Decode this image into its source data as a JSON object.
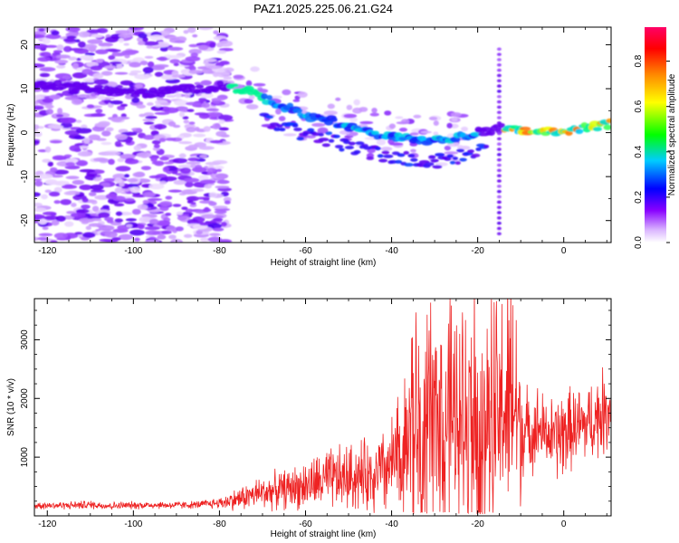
{
  "title": "PAZ1.2025.225.06.21.G24",
  "chart_data": [
    {
      "type": "heatmap",
      "xlabel": "Height of straight line (km)",
      "ylabel": "Frequency (Hz)",
      "xlim": [
        -123,
        11
      ],
      "ylim": [
        -25,
        24
      ],
      "xticks": [
        -120,
        -100,
        -80,
        -60,
        -40,
        -20,
        0
      ],
      "yticks": [
        -20,
        -10,
        0,
        10,
        20
      ],
      "colorbar": {
        "label": "Normalized spectral amplitude",
        "range": [
          0,
          0.95
        ],
        "ticks": [
          0.0,
          0.2,
          0.4,
          0.6,
          0.8
        ],
        "colormap": [
          "#ffffff",
          "#8800ff",
          "#0000ff",
          "#00ffff",
          "#00ff00",
          "#ffff00",
          "#ff8800",
          "#ff0000",
          "#ff0066"
        ]
      },
      "ridge": {
        "x": [
          -123,
          -110,
          -100,
          -95,
          -90,
          -85,
          -80,
          -75,
          -70,
          -65,
          -60,
          -55,
          -50,
          -45,
          -40,
          -35,
          -30,
          -25,
          -20,
          -17,
          -15,
          -10,
          -5,
          0,
          5,
          11
        ],
        "frequency": [
          11,
          10,
          9,
          9,
          10,
          10,
          10.5,
          10,
          8,
          6,
          4,
          3,
          1.5,
          0,
          -1,
          -1.5,
          -2,
          -1,
          0,
          0.5,
          1,
          0.5,
          0.5,
          0.5,
          1,
          2
        ]
      }
    },
    {
      "type": "line",
      "xlabel": "Height of straight line (km)",
      "ylabel": "SNR (10 * v/v)",
      "xlim": [
        -123,
        11
      ],
      "ylim": [
        0,
        3700
      ],
      "xticks": [
        -120,
        -100,
        -80,
        -60,
        -40,
        -20,
        0
      ],
      "yticks": [
        1000,
        2000,
        3000
      ],
      "color": "#ee2222",
      "series": [
        {
          "x": [
            -123,
            -115,
            -110,
            -105,
            -100,
            -95,
            -90,
            -85,
            -80,
            -78,
            -75,
            -70,
            -65,
            -60,
            -55,
            -50,
            -45,
            -42,
            -40,
            -38,
            -36,
            -35,
            -34,
            -32,
            -30,
            -28,
            -26,
            -24,
            -22,
            -20,
            -19,
            -18,
            -16,
            -15,
            -14,
            -13,
            -12,
            -11,
            -10,
            -8,
            -6,
            -4,
            -2,
            0,
            2,
            4,
            6,
            8,
            10,
            11
          ],
          "y": [
            180,
            180,
            190,
            170,
            180,
            185,
            180,
            190,
            220,
            250,
            300,
            400,
            450,
            520,
            600,
            650,
            700,
            750,
            850,
            1000,
            1400,
            1600,
            1400,
            1500,
            1700,
            1800,
            1700,
            1600,
            1800,
            1900,
            1600,
            1700,
            1600,
            1700,
            1900,
            1800,
            2000,
            1800,
            1500,
            1400,
            1500,
            1400,
            1300,
            1400,
            1500,
            1500,
            1600,
            1700,
            1800,
            1900
          ],
          "envelope": [
            80,
            80,
            90,
            80,
            80,
            80,
            80,
            80,
            120,
            180,
            250,
            350,
            400,
            500,
            650,
            700,
            750,
            900,
            1000,
            1500,
            2200,
            3100,
            2600,
            2200,
            2500,
            2600,
            2300,
            2300,
            2800,
            3300,
            3600,
            2700,
            2500,
            2400,
            2600,
            2900,
            3000,
            2600,
            1500,
            700,
            900,
            700,
            900,
            1000,
            800,
            900,
            800,
            900,
            900,
            800
          ]
        }
      ]
    }
  ]
}
